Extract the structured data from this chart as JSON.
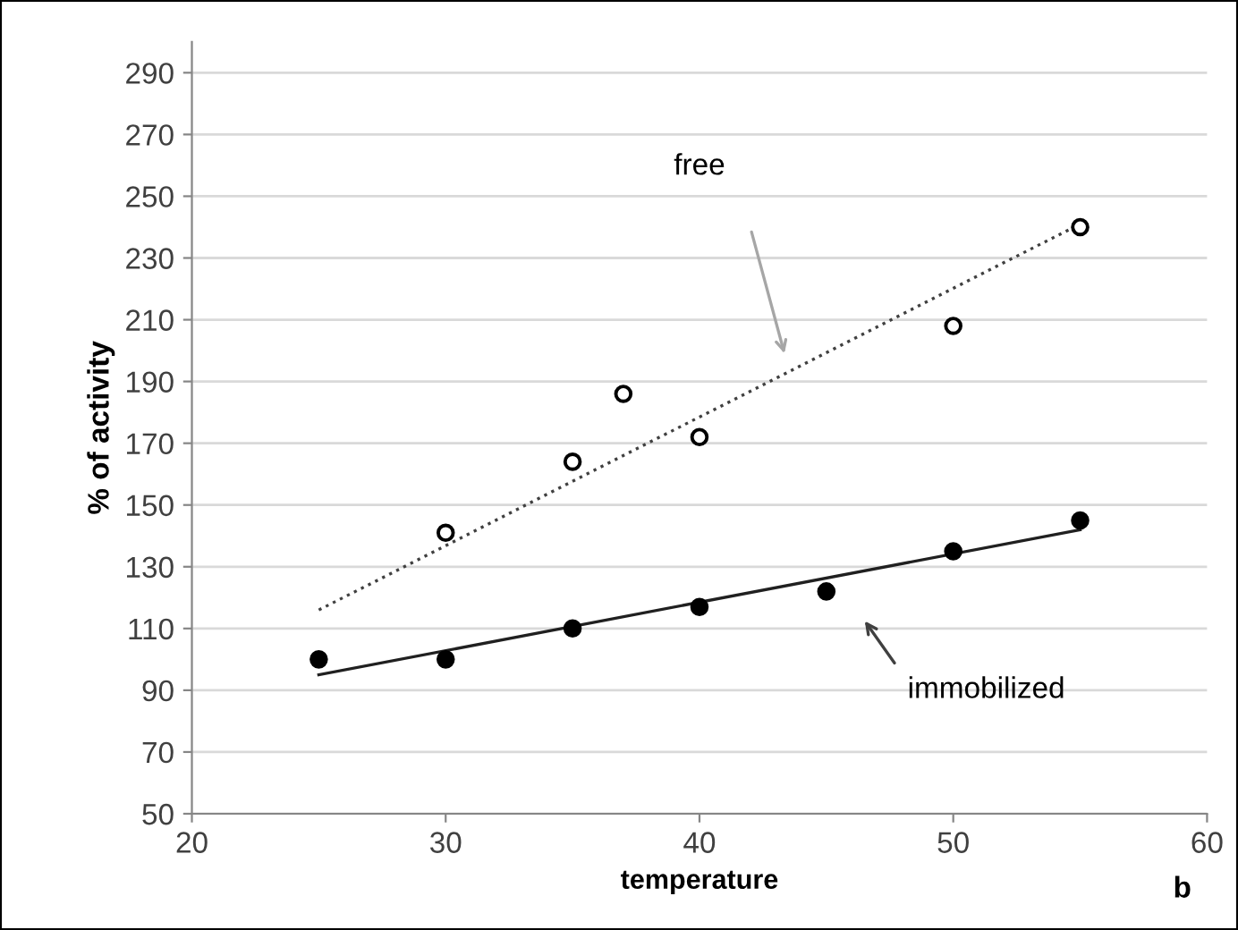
{
  "chart_data": {
    "type": "scatter",
    "xlabel": "temperature",
    "ylabel": "% of activity",
    "xlim": [
      20,
      60
    ],
    "xticks": [
      20,
      30,
      40,
      50,
      60
    ],
    "ylim": [
      50,
      300
    ],
    "yticks": [
      50,
      70,
      90,
      110,
      130,
      150,
      170,
      190,
      210,
      230,
      250,
      270,
      290
    ],
    "grid": "y",
    "series": [
      {
        "color": "#ffffff",
        "marker": "circle",
        "x": [
          30,
          35,
          37,
          40,
          50,
          55
        ],
        "values": [
          141,
          164,
          186,
          172,
          208,
          240
        ]
      },
      {
        "color": "#000000",
        "marker": "circle",
        "x": [
          25,
          30,
          35,
          40,
          45,
          50,
          55
        ],
        "values": [
          100,
          100,
          110,
          117,
          122,
          135,
          145
        ]
      },
      {
        "type": "line",
        "color": "#404040",
        "line_style": "dotted",
        "x": [
          25,
          55
        ],
        "values": [
          116,
          241
        ]
      },
      {
        "type": "line",
        "color": "#202020",
        "line_style": "solid",
        "x": [
          25,
          55
        ],
        "values": [
          95,
          142
        ]
      }
    ],
    "annotations": [
      "free",
      "immobilized",
      "b"
    ]
  }
}
